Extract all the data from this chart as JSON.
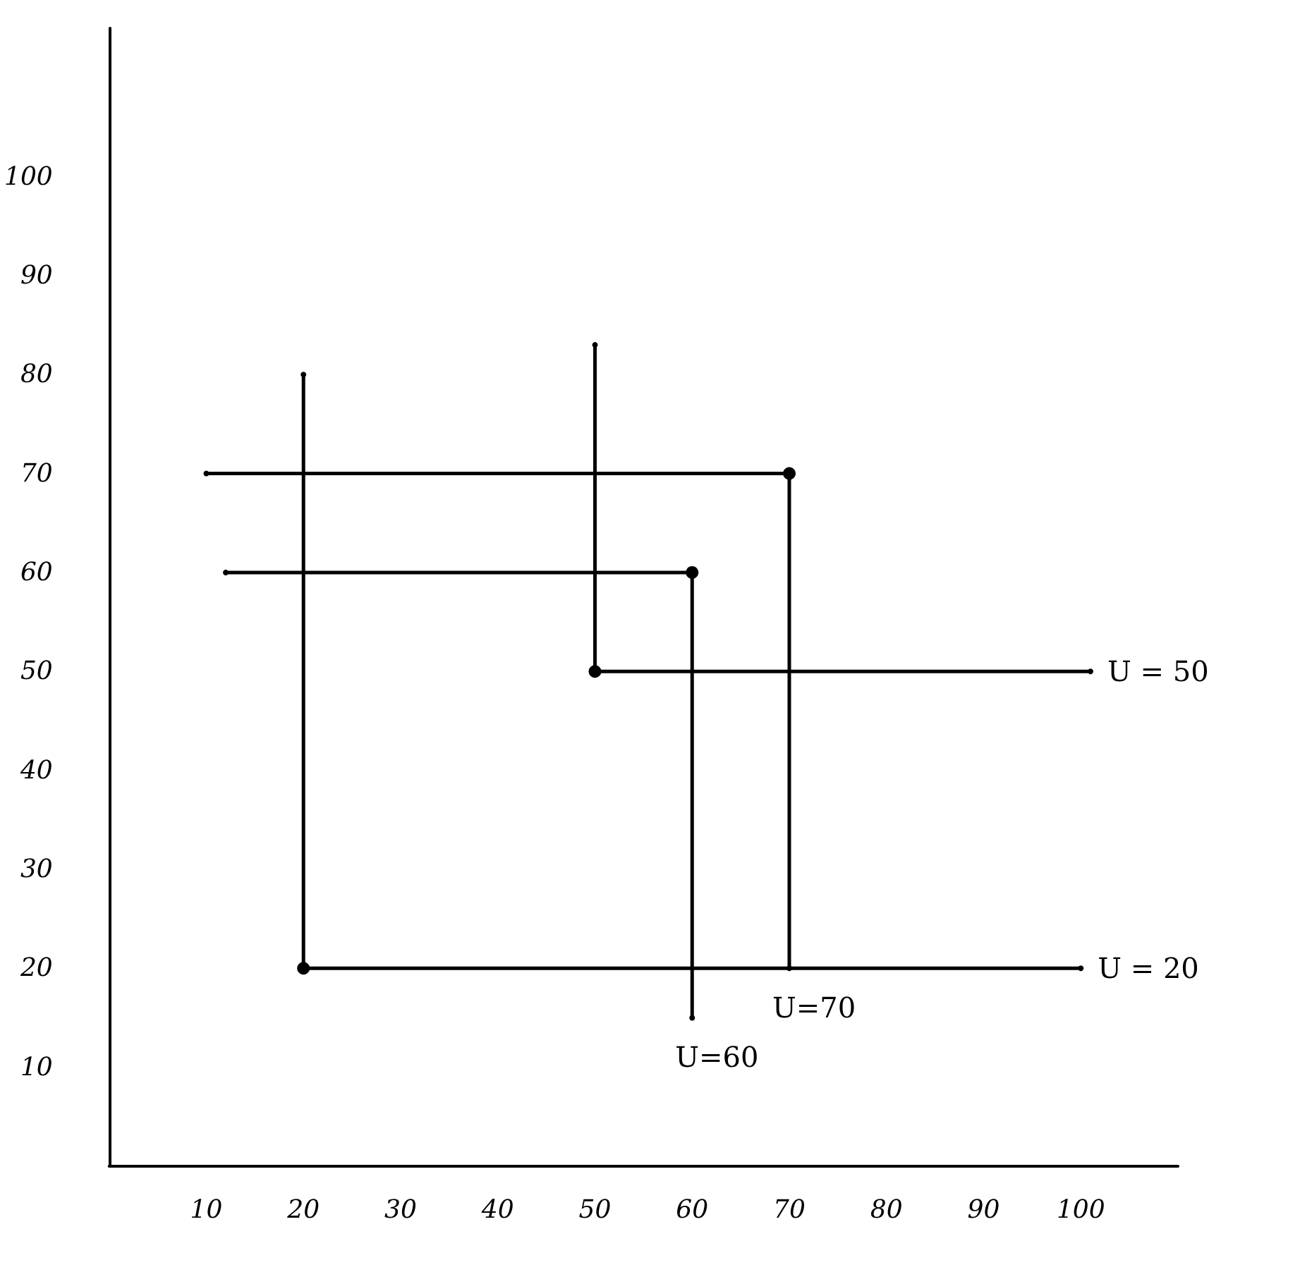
{
  "chart_data": {
    "type": "line",
    "series": [
      {
        "name": "U = 20",
        "color": "#000000",
        "x": [
          20,
          20,
          100
        ],
        "values": [
          80,
          20,
          20
        ]
      },
      {
        "name": "U = 50",
        "color": "#000000",
        "x": [
          50,
          50,
          101
        ],
        "values": [
          83,
          50,
          50
        ]
      },
      {
        "name": "U=60",
        "color": "#000000",
        "x": [
          12,
          60,
          60
        ],
        "values": [
          60,
          60,
          15
        ]
      },
      {
        "name": "U=70",
        "color": "#000000",
        "x": [
          10,
          70,
          70
        ],
        "values": [
          70,
          70,
          20
        ]
      }
    ],
    "xlim": [
      0,
      110
    ],
    "ylim": [
      0,
      115
    ],
    "xticks": [
      10,
      20,
      30,
      40,
      50,
      60,
      70,
      80,
      90,
      100
    ],
    "yticks": [
      10,
      20,
      30,
      40,
      50,
      60,
      70,
      80,
      90,
      100
    ],
    "grid": false,
    "legend": false,
    "marker": "circle",
    "line_style": "solid"
  }
}
